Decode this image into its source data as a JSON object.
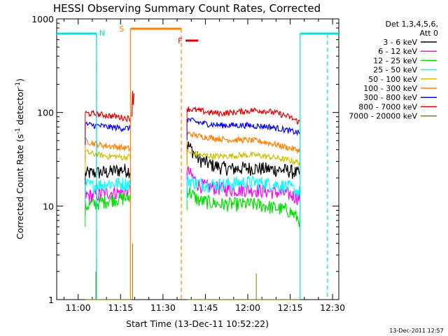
{
  "chart_data": {
    "type": "line",
    "title": "HESSI Observing Summary Count Rates, Corrected",
    "xlabel": "Start Time (13-Dec-11 10:52:22)",
    "ylabel": "Corrected Count Rate (s",
    "ylabel_sup": "-1",
    "ylabel_rest": " detector",
    "ylabel_sup2": "-1",
    "ylabel_end": ")",
    "timestamp": "13-Dec-2011 12:57",
    "x_ticks": [
      "11:00",
      "11:15",
      "11:30",
      "11:45",
      "12:00",
      "12:15",
      "12:30"
    ],
    "x_tick_minutes": [
      0,
      15,
      30,
      45,
      60,
      75,
      90
    ],
    "x_range_minutes": [
      -7.6,
      92.2
    ],
    "y_scale": "log",
    "y_ticks": [
      "1",
      "10",
      "100",
      "1000"
    ],
    "y_tick_values": [
      1,
      10,
      100,
      1000
    ],
    "y_range": [
      1,
      1000
    ],
    "legend": {
      "header": [
        "Det 1,3,4,5,6,",
        "Att 0"
      ],
      "placement": "right",
      "entries": [
        {
          "label": "3 - 6 keV",
          "color": "#000000"
        },
        {
          "label": "6 - 12 keV",
          "color": "#ff00ff"
        },
        {
          "label": "12 - 25 keV",
          "color": "#00e000"
        },
        {
          "label": "25 - 50 keV",
          "color": "#00ffff"
        },
        {
          "label": "50 - 100 keV",
          "color": "#d0c000"
        },
        {
          "label": "100 - 300 keV",
          "color": "#ff8000"
        },
        {
          "label": "300 - 800 keV",
          "color": "#0000ff"
        },
        {
          "label": "800 - 7000 keV",
          "color": "#e00000"
        },
        {
          "label": "7000 - 20000 keV",
          "color": "#808000"
        }
      ]
    },
    "markers": {
      "night_label": "N",
      "saa_start_label": "S",
      "flare_label": "F",
      "night_color": "#00e0e0",
      "saa_color": "#ff8000",
      "flare_color": "#e00000",
      "night_bars": [
        [
          -7.6,
          6.5
        ],
        [
          78.5,
          92.2
        ]
      ],
      "night_edges": [
        6.5,
        78.5
      ],
      "night_dashed": [
        6.5,
        88.2
      ],
      "saa_bar": [
        18.5,
        36.5
      ],
      "saa_start": 18.5,
      "saa_end_dashed": 36.5,
      "flare_bar": [
        38.0,
        42.5
      ]
    },
    "segments": [
      [
        2.5,
        18.5
      ],
      [
        38.5,
        78.5
      ]
    ],
    "series": [
      {
        "name": "3 - 6 keV",
        "color": "#000000",
        "seg1": [
          22.5,
          22.5,
          23,
          23,
          24,
          24.5,
          24
        ],
        "seg2": [
          46,
          32,
          28,
          26,
          25,
          25.5,
          25.5,
          25,
          24.5,
          24,
          22
        ]
      },
      {
        "name": "6 - 12 keV",
        "color": "#ff00ff",
        "seg1": [
          13,
          13,
          13.5,
          14,
          14,
          14,
          15
        ],
        "seg2": [
          24,
          17,
          16,
          15.5,
          15,
          15,
          15,
          14.5,
          14,
          13.5,
          12
        ]
      },
      {
        "name": "12 - 25 keV",
        "color": "#00e000",
        "seg1": [
          10,
          10.5,
          11,
          11.5,
          12,
          12,
          12.5
        ],
        "seg2": [
          15,
          11.5,
          11,
          10.5,
          10.5,
          10.5,
          10.5,
          10,
          9.5,
          9,
          7
        ]
      },
      {
        "name": "25 - 50 keV",
        "color": "#00ffff",
        "seg1": [
          17,
          16.5,
          17,
          17.5,
          17.5,
          17.5,
          17.5
        ],
        "seg2": [
          19,
          17.5,
          17,
          17,
          17.5,
          18,
          18,
          17.5,
          17,
          16,
          14
        ]
      },
      {
        "name": "50 - 100 keV",
        "color": "#d0c000",
        "seg1": [
          38,
          36,
          35,
          34,
          34,
          33,
          34
        ],
        "seg2": [
          38,
          35,
          34.5,
          34,
          34.5,
          35,
          35,
          34,
          32.5,
          31,
          29
        ]
      },
      {
        "name": "100 - 300 keV",
        "color": "#ff8000",
        "seg1": [
          50,
          47,
          45,
          44,
          43,
          42,
          41
        ],
        "seg2": [
          60,
          56,
          54,
          52,
          51,
          51,
          50,
          48,
          45,
          42,
          39
        ]
      },
      {
        "name": "300 - 800 keV",
        "color": "#0000ff",
        "seg1": [
          75,
          73,
          72,
          70,
          69,
          68,
          68
        ],
        "seg2": [
          85,
          78,
          75,
          73,
          73,
          73,
          72,
          71,
          68,
          64,
          60
        ]
      },
      {
        "name": "800 - 7000 keV",
        "color": "#e00000",
        "seg1": [
          98,
          97,
          95,
          93,
          91,
          88,
          86
        ],
        "seg2": [
          110,
          105,
          100,
          98,
          100,
          103,
          106,
          104,
          98,
          90,
          78
        ]
      },
      {
        "name": "7000 - 20000 keV",
        "color": "#808000",
        "seg1": [
          1,
          1,
          1,
          1,
          1,
          1,
          1
        ],
        "seg2": [
          1,
          1,
          1,
          1,
          1,
          1,
          1,
          1,
          1,
          1,
          1
        ]
      }
    ]
  }
}
